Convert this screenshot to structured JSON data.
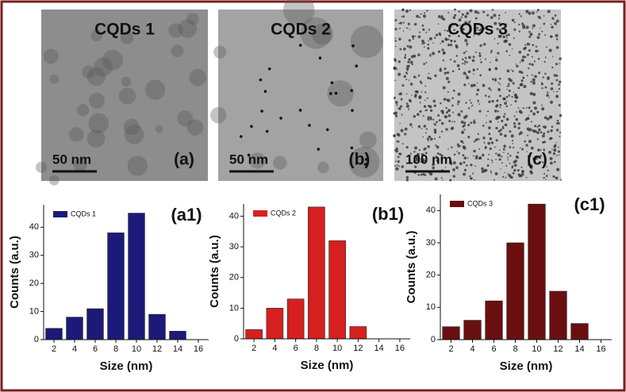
{
  "images": [
    {
      "title": "CQDs 1",
      "label": "(a)",
      "scale": "50 nm"
    },
    {
      "title": "CQDs 2",
      "label": "(b)",
      "scale": "50 nm"
    },
    {
      "title": "CQDs 3",
      "label": "(c)",
      "scale": "100 nm"
    }
  ],
  "chart_data": [
    {
      "type": "bar",
      "label": "(a1)",
      "xlabel": "Size (nm)",
      "ylabel": "Counts (a.u.)",
      "series": [
        {
          "name": "CQDs 1",
          "color": "#1b1a78",
          "x": [
            2,
            4,
            6,
            8,
            10,
            12,
            14
          ],
          "values": [
            4,
            8,
            11,
            38,
            45,
            9,
            3
          ]
        }
      ],
      "xlim": [
        1,
        17
      ],
      "xticks": [
        2,
        4,
        6,
        8,
        10,
        12,
        14,
        16
      ],
      "ylim": [
        0,
        48
      ],
      "yticks": [
        0,
        10,
        20,
        30,
        40
      ],
      "legend": "top-left"
    },
    {
      "type": "bar",
      "label": "(b1)",
      "xlabel": "Size (nm)",
      "ylabel": "Counts (a.u.)",
      "series": [
        {
          "name": "CQDs 2",
          "color": "#d6201f",
          "x": [
            2,
            4,
            6,
            8,
            10,
            12
          ],
          "values": [
            3,
            10,
            13,
            43,
            32,
            4
          ]
        }
      ],
      "xlim": [
        1,
        17
      ],
      "xticks": [
        2,
        4,
        6,
        8,
        10,
        12,
        14,
        16
      ],
      "ylim": [
        0,
        44
      ],
      "yticks": [
        0,
        10,
        20,
        30,
        40
      ],
      "legend": "top-left"
    },
    {
      "type": "bar",
      "label": "(c1)",
      "xlabel": "Size (nm)",
      "ylabel": "Counts (a.u.)",
      "series": [
        {
          "name": "CQDs 3",
          "color": "#6a0f10",
          "x": [
            2,
            4,
            6,
            8,
            10,
            12,
            14
          ],
          "values": [
            4,
            6,
            12,
            30,
            42,
            15,
            5
          ]
        }
      ],
      "xlim": [
        1,
        17
      ],
      "xticks": [
        2,
        4,
        6,
        8,
        10,
        12,
        14,
        16
      ],
      "ylim": [
        0,
        45
      ],
      "yticks": [
        0,
        10,
        20,
        30,
        40
      ],
      "legend": "top-left"
    }
  ]
}
